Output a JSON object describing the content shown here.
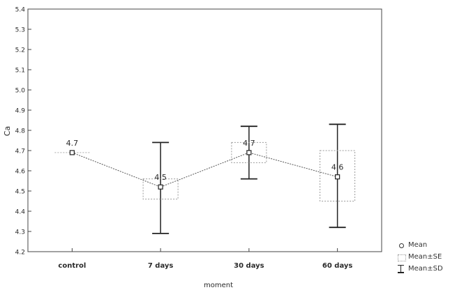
{
  "chart_data": {
    "type": "line",
    "xlabel": "moment",
    "ylabel": "Ca",
    "categories": [
      "control",
      "7 days",
      "30 days",
      "60 days"
    ],
    "ylim": [
      4.2,
      5.4
    ],
    "yticks": [
      "4.2",
      "4.3",
      "4.4",
      "4.5",
      "4.6",
      "4.7",
      "4.8",
      "4.9",
      "5.0",
      "5.1",
      "5.2",
      "5.3",
      "5.4"
    ],
    "mean": [
      4.69,
      4.52,
      4.69,
      4.57
    ],
    "mean_labels": [
      "4.7",
      "4.5",
      "4.7",
      "4.6"
    ],
    "se_low": [
      4.69,
      4.46,
      4.64,
      4.45
    ],
    "se_high": [
      4.69,
      4.56,
      4.74,
      4.7
    ],
    "sd_low": [
      4.69,
      4.29,
      4.56,
      4.32
    ],
    "sd_high": [
      4.69,
      4.74,
      4.82,
      4.83
    ],
    "legend": [
      "Mean",
      "Mean±SE",
      "Mean±SD"
    ],
    "legend_position": "bottom-right",
    "grid": false
  }
}
